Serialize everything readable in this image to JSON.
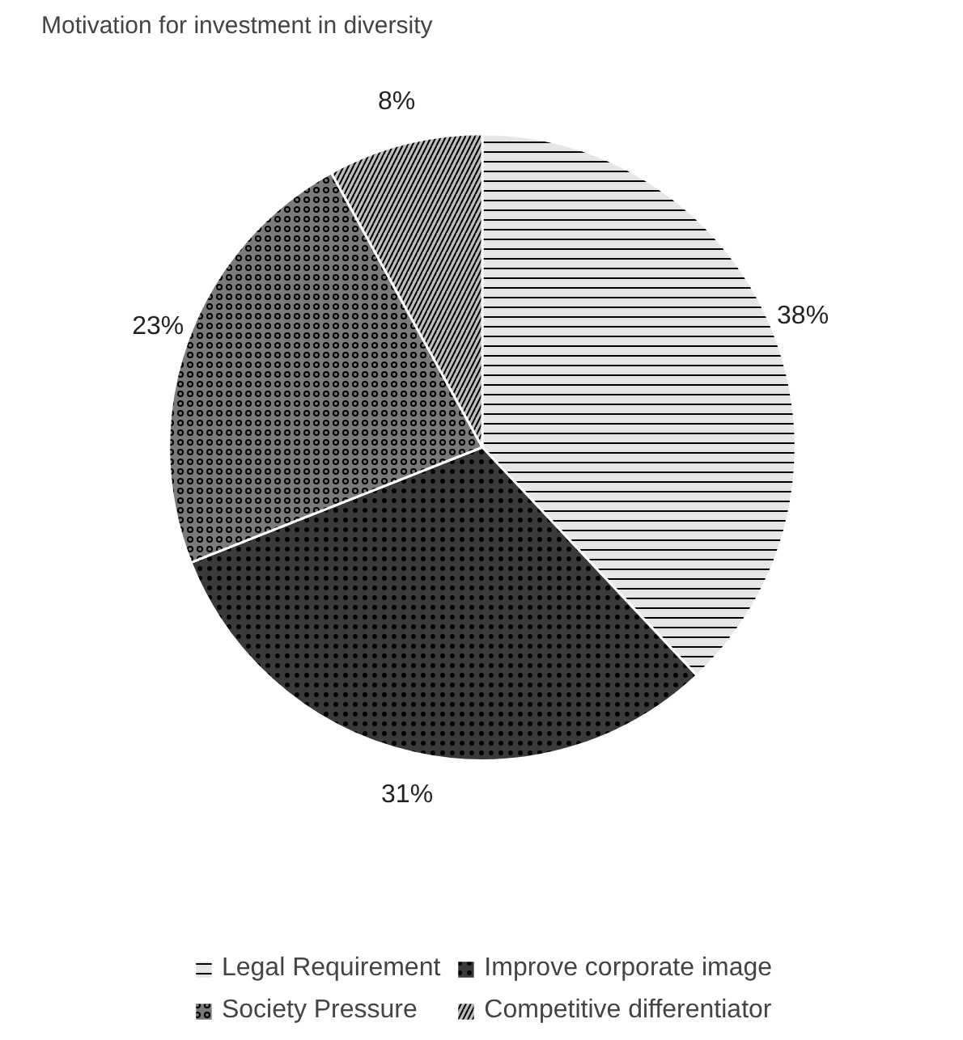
{
  "chart_data": {
    "type": "pie",
    "title": "Motivation for investment in diversity",
    "categories": [
      "Legal Requirement",
      "Improve corporate image",
      "Society Pressure",
      "Competitive differentiator"
    ],
    "values": [
      38,
      31,
      23,
      8
    ],
    "value_labels": [
      "38%",
      "31%",
      "23%",
      "8%"
    ],
    "colors": [
      "#e6e6e6",
      "#3a3a3a",
      "#7a7a7a",
      "#bdbdbd"
    ],
    "legend": "bottom"
  }
}
